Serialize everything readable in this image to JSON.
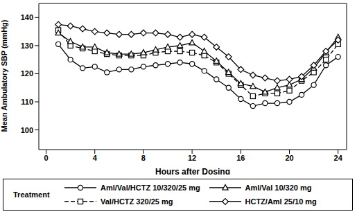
{
  "chart_data": {
    "type": "line",
    "x_label": "Hours after Dosing",
    "y_label": "Mean Ambulatory SBP (mmHg)",
    "legend_title": "Treatment",
    "legend": "bottom",
    "grid": false,
    "xlim": [
      -0.6,
      24.7
    ],
    "xticks": [
      0,
      4,
      8,
      12,
      16,
      20,
      24
    ],
    "ylim": [
      93,
      145
    ],
    "yticks": [
      100,
      110,
      120,
      130,
      140
    ],
    "x": [
      1,
      2,
      3,
      4,
      5,
      6,
      7,
      8,
      9,
      10,
      11,
      12,
      13,
      14,
      15,
      16,
      17,
      18,
      19,
      20,
      21,
      22,
      23,
      24
    ],
    "series": [
      {
        "name": "Aml/Val/HCTZ 10/320/25 mg",
        "color": "#000000",
        "marker": "circle",
        "line_style": "solid",
        "values": [
          130.5,
          125,
          122,
          122.5,
          120.5,
          121.5,
          121.5,
          122.5,
          123,
          123.5,
          124,
          123.5,
          121,
          118,
          115,
          111,
          108.5,
          109.5,
          109.5,
          110,
          112.5,
          116,
          123,
          126
        ]
      },
      {
        "name": "Val/HCTZ 320/25 mg",
        "color": "#000000",
        "marker": "square",
        "line_style": "dashed",
        "values": [
          135.5,
          130,
          129,
          128,
          127,
          126.5,
          126.5,
          126.5,
          127.5,
          128,
          128,
          127.5,
          126.5,
          124,
          120,
          116,
          112,
          113,
          113,
          114,
          117.5,
          120.5,
          125,
          130.5
        ]
      },
      {
        "name": "Aml/Val 10/320 mg",
        "color": "#000000",
        "marker": "triangle",
        "line_style": "solid",
        "values": [
          134.5,
          131.5,
          129.5,
          129.5,
          127.5,
          127,
          127,
          127.5,
          128.5,
          129.5,
          130,
          131,
          128,
          124.5,
          120.5,
          116.5,
          115.5,
          113.5,
          115,
          116,
          118,
          122,
          127.5,
          133
        ]
      },
      {
        "name": "HCTZ/Aml 25/10 mg",
        "color": "#000000",
        "marker": "diamond",
        "line_style": "solid",
        "values": [
          137.5,
          137,
          136,
          135,
          134.5,
          134,
          134,
          134.5,
          134.5,
          134,
          133,
          134,
          133,
          129.5,
          126,
          121.5,
          119.5,
          118.5,
          117.5,
          118,
          119,
          123,
          128,
          132
        ]
      }
    ]
  }
}
